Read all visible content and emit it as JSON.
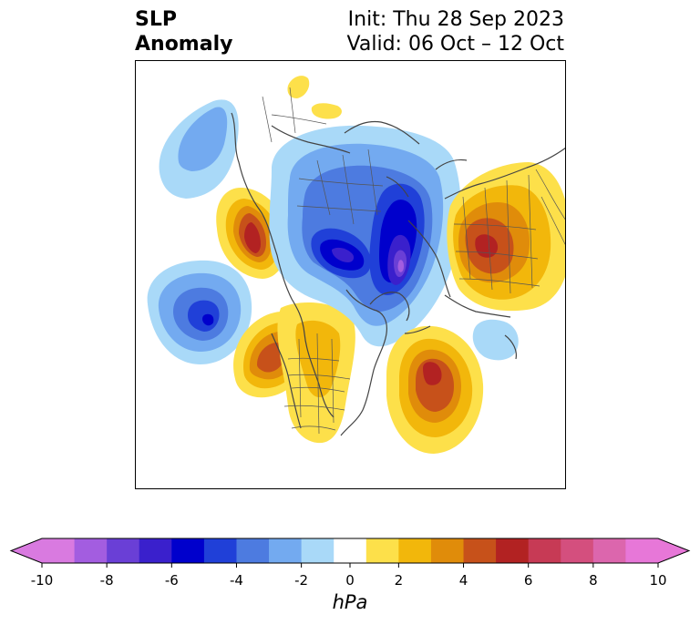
{
  "title": {
    "left_line1": "SLP",
    "left_line2": "Anomaly",
    "right_line1": "Init: Thu 28 Sep 2023",
    "right_line2": "Valid: 06 Oct – 12 Oct"
  },
  "map": {
    "projection": "polar-stereographic",
    "region": "Northern Hemisphere (North America, Arctic, Eurasia)"
  },
  "colorbar": {
    "unit_label": "hPa",
    "extend": "both",
    "tick_labels": [
      "-10",
      "-8",
      "-6",
      "-4",
      "-2",
      "0",
      "2",
      "4",
      "6",
      "8",
      "10"
    ],
    "bounds": [
      -10,
      -9,
      -8,
      -7,
      -6,
      -5,
      -4,
      -3,
      -2,
      -1,
      1,
      2,
      3,
      4,
      5,
      6,
      7,
      8,
      9,
      10
    ],
    "colors": [
      "#d97ae0",
      "#a35de0",
      "#6a3fd6",
      "#3a20cc",
      "#0000cc",
      "#2040d8",
      "#4d7be0",
      "#73aaf0",
      "#a9d9f8",
      "#ffffff",
      "#fde04a",
      "#f2b70b",
      "#e08c0a",
      "#c7511a",
      "#b22222",
      "#c73a55",
      "#d44f7e",
      "#dc66ad",
      "#e777d8"
    ],
    "under_color": "#d97ae0",
    "over_color": "#e777d8"
  }
}
